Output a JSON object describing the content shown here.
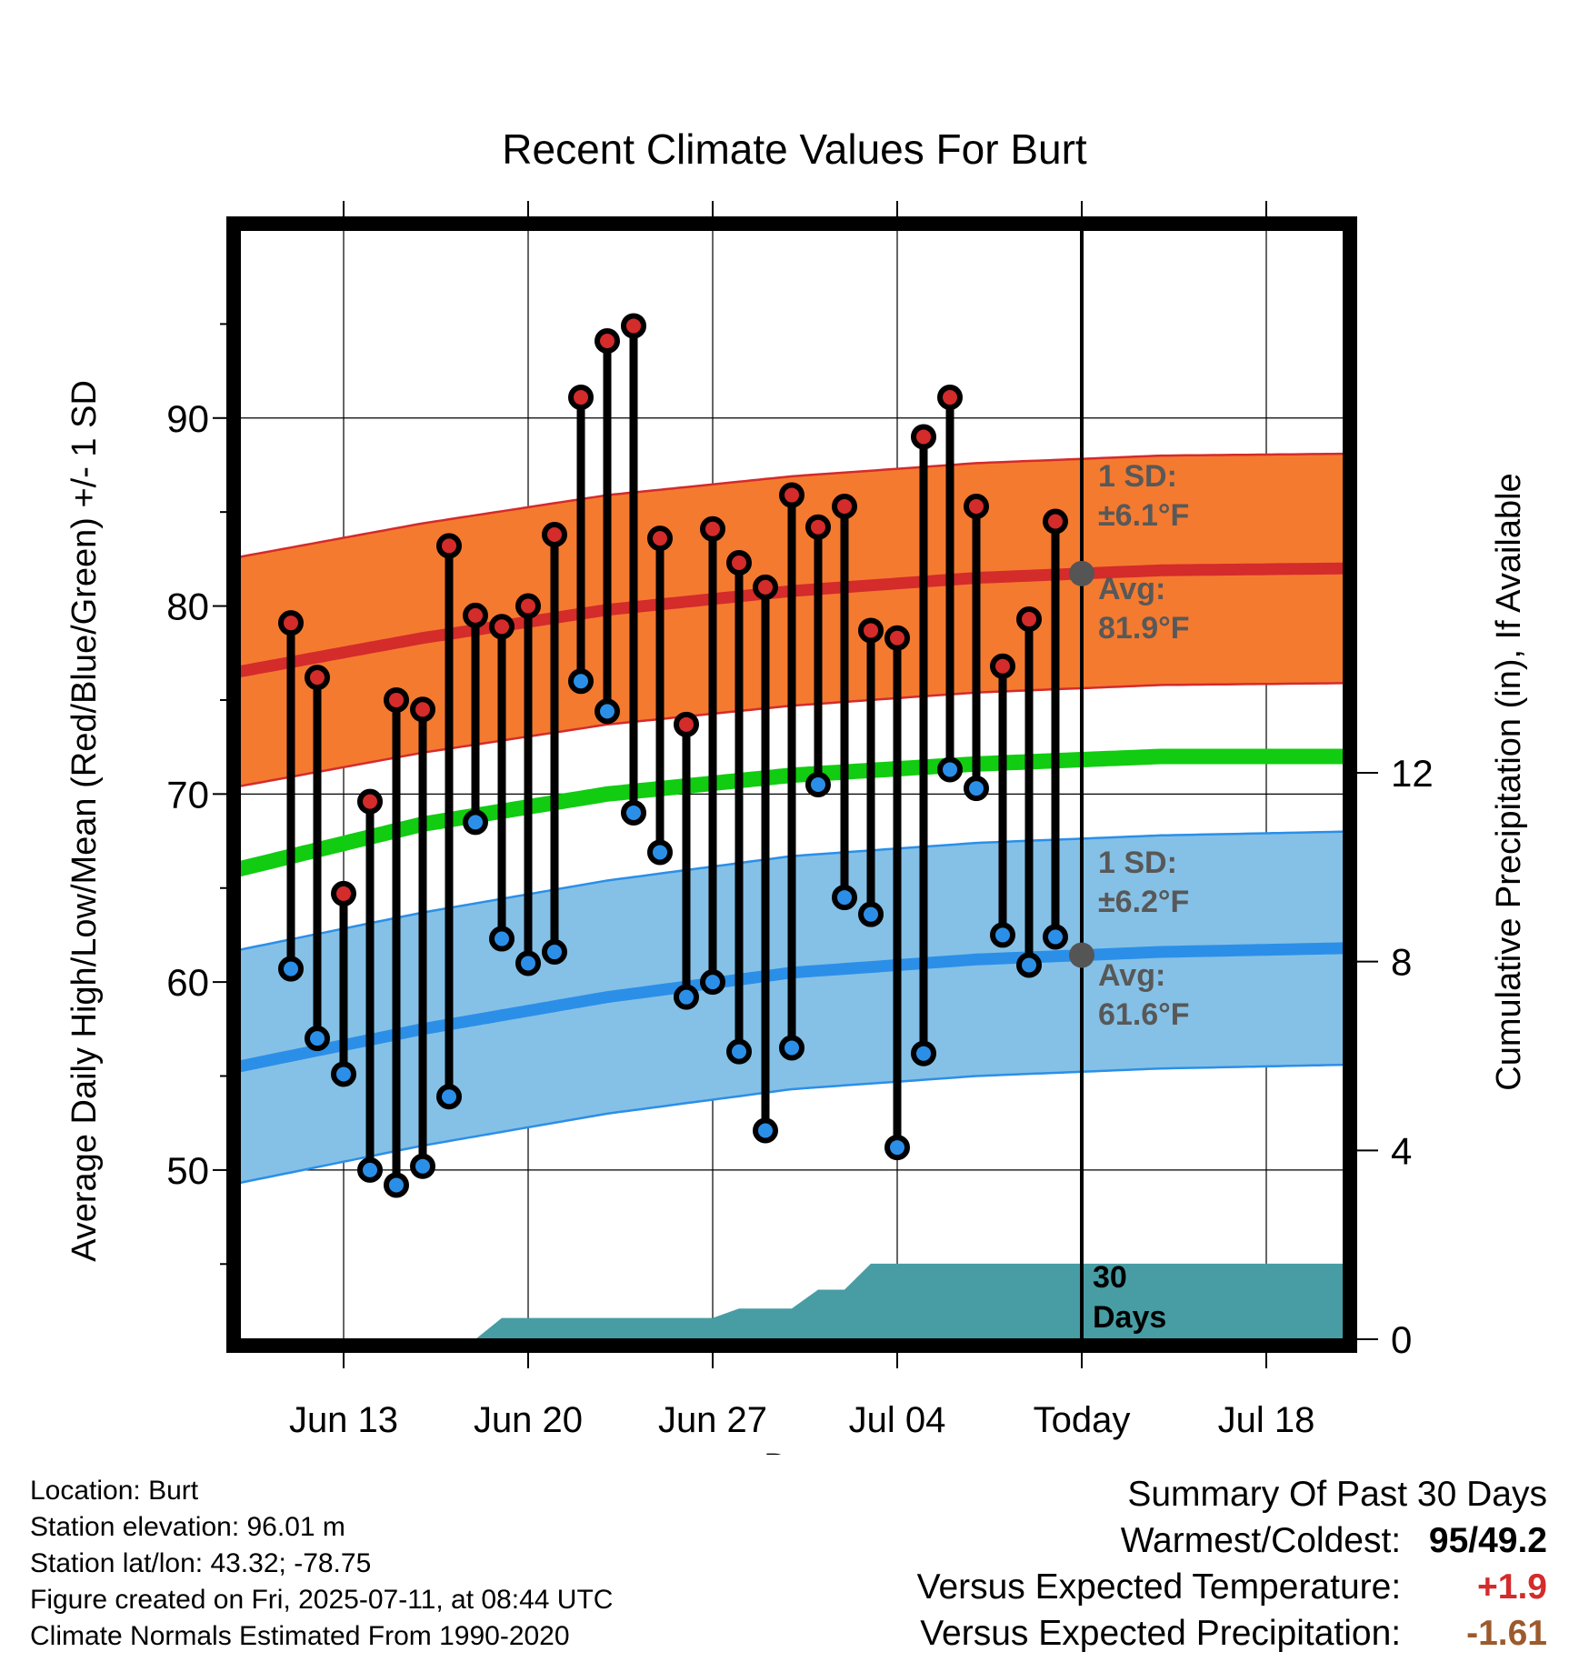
{
  "chart_data": {
    "type": "line",
    "title": "Recent Climate Values For Burt",
    "xlabel": "Day",
    "ylabel": "Average Daily High/Low/Mean (Red/Blue/Green) +/- 1 SD",
    "y2label": "Cumulative Precipitation (in), If Available",
    "ylim": [
      41,
      100
    ],
    "y2lim": [
      0,
      23.5
    ],
    "yticks": [
      50,
      60,
      70,
      80,
      90
    ],
    "y2ticks": [
      0,
      4,
      8,
      12
    ],
    "xlim": [
      "2025-06-09",
      "2025-07-21"
    ],
    "xtick_labels": [
      {
        "date": "2025-06-13",
        "label": "Jun 13"
      },
      {
        "date": "2025-06-20",
        "label": "Jun 20"
      },
      {
        "date": "2025-06-27",
        "label": "Jun 27"
      },
      {
        "date": "2025-07-04",
        "label": "Jul 04"
      },
      {
        "date": "2025-07-11",
        "label": "Today"
      },
      {
        "date": "2025-07-18",
        "label": "Jul 18"
      }
    ],
    "grid": true,
    "today": "2025-07-11",
    "days": [
      "2025-06-11",
      "2025-06-12",
      "2025-06-13",
      "2025-06-14",
      "2025-06-15",
      "2025-06-16",
      "2025-06-17",
      "2025-06-18",
      "2025-06-19",
      "2025-06-20",
      "2025-06-21",
      "2025-06-22",
      "2025-06-23",
      "2025-06-24",
      "2025-06-25",
      "2025-06-26",
      "2025-06-27",
      "2025-06-28",
      "2025-06-29",
      "2025-06-30",
      "2025-07-01",
      "2025-07-02",
      "2025-07-03",
      "2025-07-04",
      "2025-07-05",
      "2025-07-06",
      "2025-07-07",
      "2025-07-08",
      "2025-07-09",
      "2025-07-10"
    ],
    "series": [
      {
        "name": "High",
        "color": "#d42b2b",
        "values": [
          79.1,
          76.2,
          64.7,
          69.6,
          75.0,
          74.5,
          83.2,
          79.5,
          78.9,
          80.0,
          83.8,
          91.1,
          94.1,
          94.9,
          83.6,
          73.7,
          84.1,
          82.3,
          81.0,
          85.9,
          84.2,
          85.3,
          78.7,
          78.3,
          89.0,
          91.1,
          85.3,
          76.8,
          79.3,
          84.5
        ]
      },
      {
        "name": "Low",
        "color": "#2b8fe8",
        "values": [
          60.7,
          57.0,
          55.1,
          50.0,
          49.2,
          50.2,
          53.9,
          68.5,
          62.3,
          61.0,
          61.6,
          76.0,
          74.4,
          69.0,
          66.9,
          59.2,
          60.0,
          56.3,
          52.1,
          56.5,
          70.5,
          64.5,
          63.6,
          51.2,
          56.2,
          71.3,
          70.3,
          62.5,
          60.9,
          62.4
        ]
      }
    ],
    "normals": {
      "dates": [
        "2025-06-09",
        "2025-06-16",
        "2025-06-23",
        "2025-06-30",
        "2025-07-07",
        "2025-07-14",
        "2025-07-21"
      ],
      "high_mean": [
        76.5,
        78.3,
        79.8,
        80.8,
        81.5,
        81.9,
        82.0
      ],
      "low_mean": [
        55.5,
        57.5,
        59.2,
        60.5,
        61.2,
        61.6,
        61.8
      ],
      "daily_mean": [
        66.0,
        68.4,
        70.0,
        71.0,
        71.6,
        72.0,
        72.0
      ],
      "high_sd": 6.1,
      "low_sd": 6.2
    },
    "precip": {
      "dates": [
        "2025-06-09",
        "2025-06-18",
        "2025-06-19",
        "2025-06-27",
        "2025-06-28",
        "2025-06-30",
        "2025-07-01",
        "2025-07-02",
        "2025-07-03",
        "2025-07-21"
      ],
      "values": [
        0.0,
        0.0,
        0.45,
        0.45,
        0.65,
        0.65,
        1.05,
        1.05,
        1.6,
        1.6
      ]
    },
    "annotations": {
      "high_sd_label": "1 SD:",
      "high_sd_value": "±6.1°F",
      "high_avg_label": "Avg:",
      "high_avg_value": "81.9°F",
      "low_sd_label": "1 SD:",
      "low_sd_value": "±6.2°F",
      "low_avg_label": "Avg:",
      "low_avg_value": "61.6°F",
      "days_label_1": "30",
      "days_label_2": "Days"
    },
    "colors": {
      "high_band": "#f47a30",
      "high_line": "#d42b2b",
      "low_band": "#85c1e6",
      "low_line": "#2b8fe8",
      "mean_line": "#11cc11",
      "precip_fill": "#479da3",
      "annotation_text": "#585858"
    }
  },
  "info": {
    "location": "Location: Burt",
    "elevation": "Station elevation: 96.01 m",
    "latlon": "Station lat/lon: 43.32; -78.75",
    "created": "Figure created on Fri, 2025-07-11, at 08:44 UTC",
    "normals": "Climate Normals Estimated From 1990-2020"
  },
  "summary": {
    "title": "Summary Of Past 30 Days",
    "warmest_label": "Warmest/Coldest:",
    "warmest_value": "95/49.2",
    "temp_label": "Versus Expected Temperature:",
    "temp_value": "+1.9",
    "precip_label": "Versus Expected Precipitation:",
    "precip_value": "-1.61"
  }
}
